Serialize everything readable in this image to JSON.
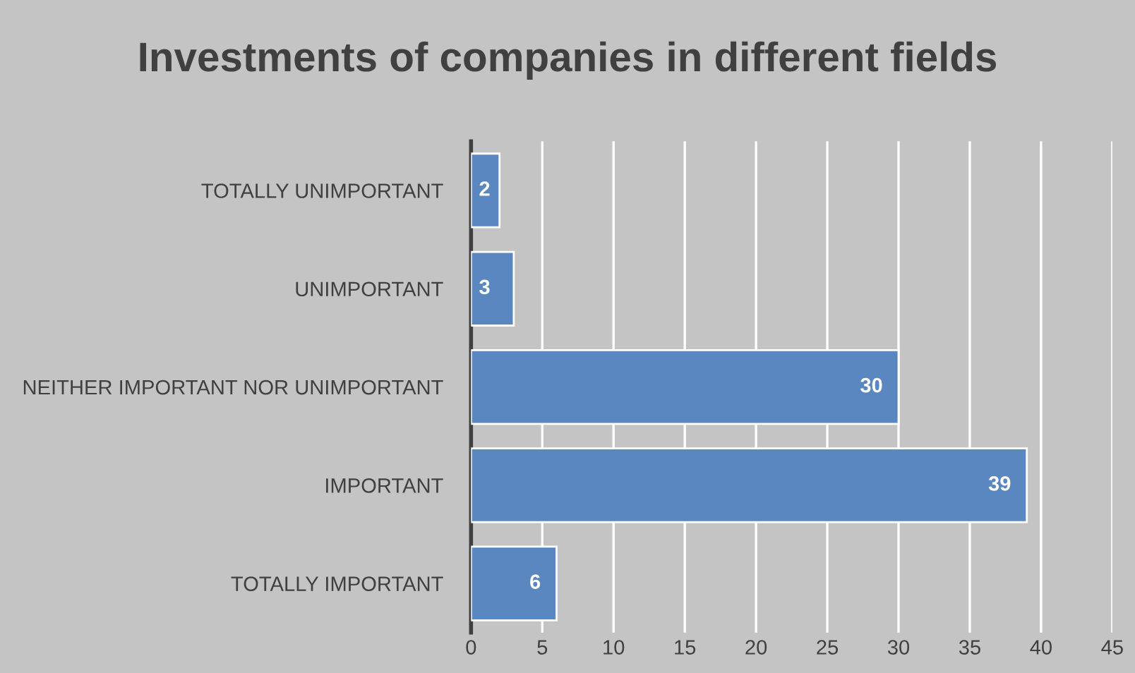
{
  "chart_data": {
    "type": "bar",
    "orientation": "horizontal",
    "title": "Investments of companies in different fields",
    "categories": [
      "TOTALLY UNIMPORTANT",
      "UNIMPORTANT",
      "NEITHER IMPORTANT NOR UNIMPORTANT",
      "IMPORTANT",
      "TOTALLY IMPORTANT"
    ],
    "values": [
      2,
      3,
      30,
      39,
      6
    ],
    "color": "#5b87c0",
    "xlim": [
      0,
      45
    ],
    "xticks": [
      0,
      5,
      10,
      15,
      20,
      25,
      30,
      35,
      40,
      45
    ],
    "grid": "x",
    "data_labels": true
  }
}
